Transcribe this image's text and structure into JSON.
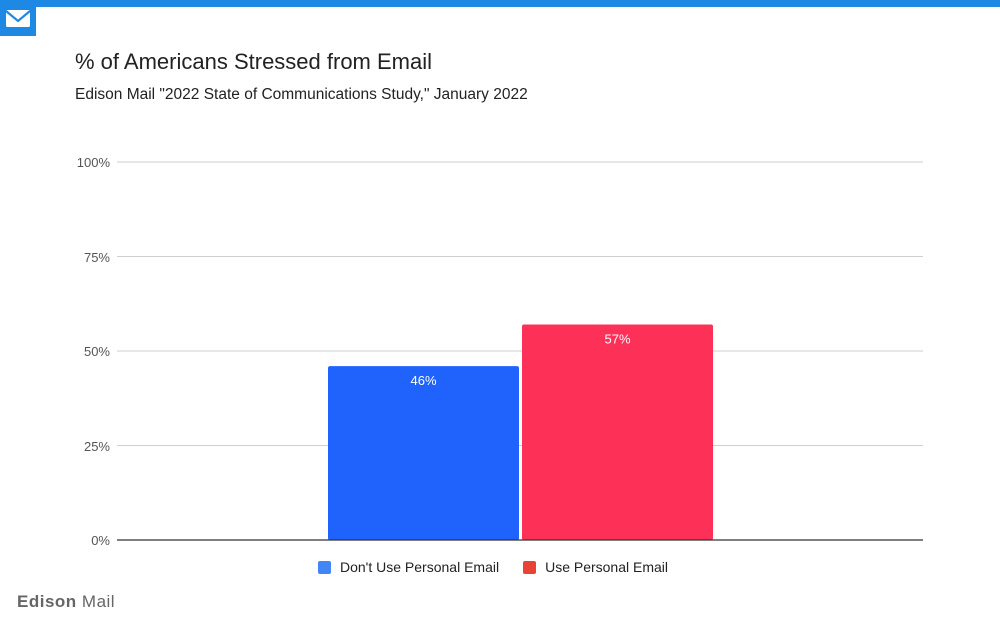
{
  "header": {
    "title": "% of Americans Stressed from Email",
    "subtitle": "Edison Mail \"2022 State of Communications Study,\" January 2022"
  },
  "branding": {
    "name_bold": "Edison",
    "name_light": "Mail"
  },
  "icons": {
    "logo": "envelope-icon"
  },
  "colors": {
    "topbar": "#1e88e5",
    "series1": "#1f63fc",
    "series2": "#fd3057",
    "grid": "#cfcfcf"
  },
  "chart_data": {
    "type": "bar",
    "title": "% of Americans Stressed from Email",
    "subtitle": "Edison Mail \"2022 State of Communications Study,\" January 2022",
    "categories": [
      "Don't Use Personal Email",
      "Use Personal Email"
    ],
    "values": [
      46,
      57
    ],
    "value_labels": [
      "46%",
      "57%"
    ],
    "ylim": [
      0,
      100
    ],
    "yticks": [
      "0%",
      "25%",
      "50%",
      "75%",
      "100%"
    ],
    "ytick_values": [
      0,
      25,
      50,
      75,
      100
    ],
    "legend": [
      "Don't Use Personal Email",
      "Use Personal Email"
    ],
    "legend_position": "bottom",
    "grid": true,
    "xlabel": "",
    "ylabel": ""
  }
}
